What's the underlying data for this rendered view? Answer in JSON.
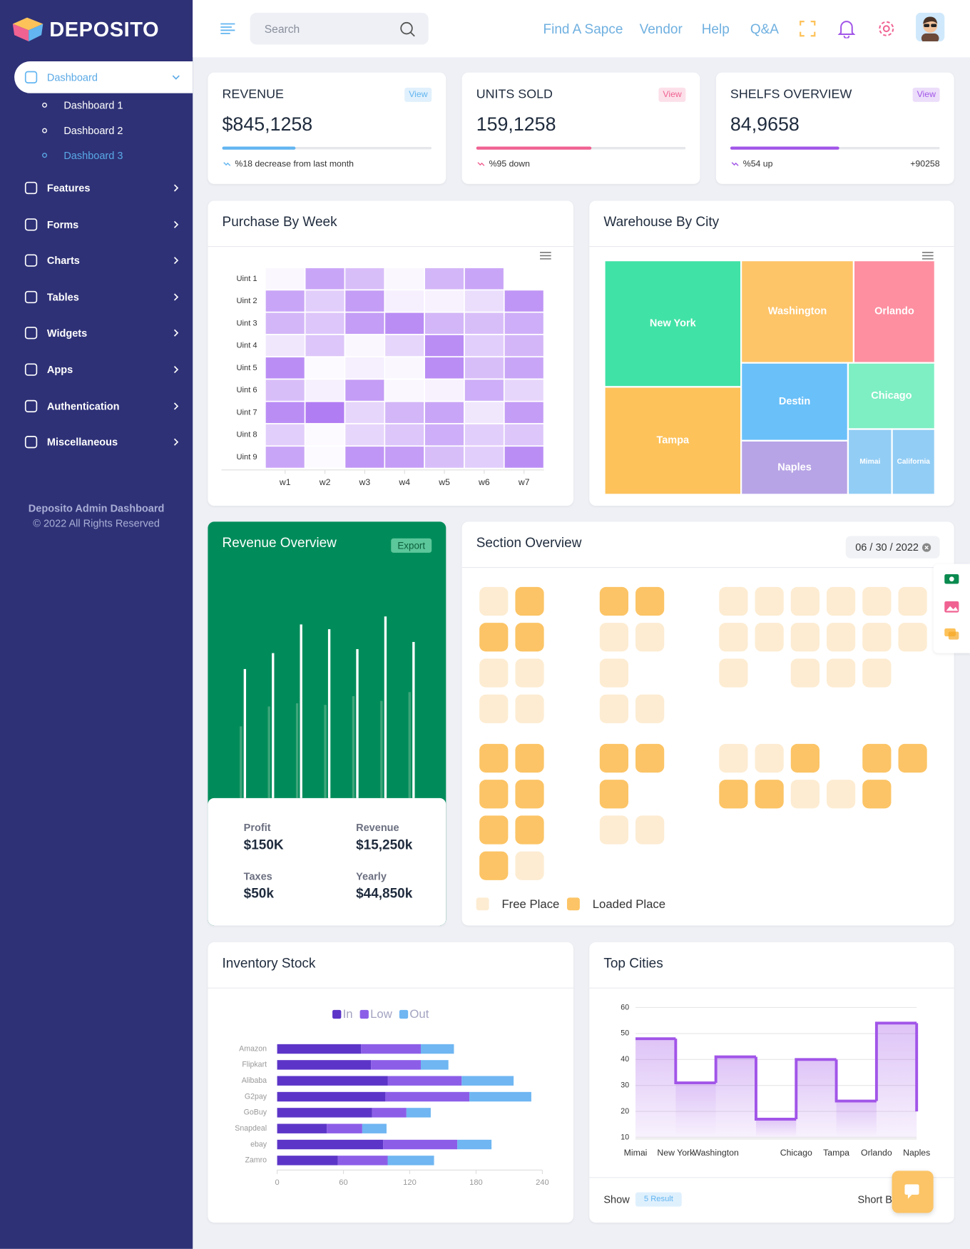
{
  "sidebar": {
    "brand": "DEPOSITO",
    "menu": [
      {
        "label": "Dashboard",
        "children": [
          "Dashboard 1",
          "Dashboard 2",
          "Dashboard 3"
        ]
      },
      {
        "label": "Features"
      },
      {
        "label": "Forms"
      },
      {
        "label": "Charts"
      },
      {
        "label": "Tables"
      },
      {
        "label": "Widgets"
      },
      {
        "label": "Apps"
      },
      {
        "label": "Authentication"
      },
      {
        "label": "Miscellaneous"
      }
    ],
    "footer": [
      "Deposito Admin Dashboard",
      "© 2022 All Rights Reserved"
    ]
  },
  "header": {
    "search": "Search",
    "links": [
      "Find A Sapce",
      "Vendor",
      "Help",
      "Q&A"
    ]
  },
  "stats": [
    {
      "title": "REVENUE",
      "button": "View",
      "value": "$845,1258",
      "progress": 35,
      "note": "%18 decrease from last month",
      "color": "#62b5f0"
    },
    {
      "title": "UNITS SOLD",
      "button": "View",
      "value": "159,1258",
      "progress": 55,
      "note": "%95 down",
      "color": "#f06292"
    },
    {
      "title": "SHELFS OVERVIEW",
      "button": "View",
      "value": "84,9658",
      "progress": 52,
      "note": "%54 up",
      "extra": "+90258",
      "color": "#a155e8"
    }
  ],
  "chart_data": [
    {
      "type": "heatmap",
      "title": "Purchase By Week",
      "x": [
        "w1",
        "w2",
        "w3",
        "w4",
        "w5",
        "w6",
        "w7"
      ],
      "color": "#9d5cf0",
      "range": [
        0,
        100
      ],
      "series": [
        {
          "name": "Uint 1",
          "values": [
            5,
            55,
            40,
            5,
            45,
            55,
            0
          ]
        },
        {
          "name": "Uint 2",
          "values": [
            55,
            30,
            60,
            10,
            8,
            20,
            65
          ]
        },
        {
          "name": "Uint 3",
          "values": [
            45,
            35,
            60,
            70,
            45,
            40,
            50
          ]
        },
        {
          "name": "Uint 4",
          "values": [
            15,
            35,
            5,
            25,
            70,
            30,
            45
          ]
        },
        {
          "name": "Uint 5",
          "values": [
            70,
            3,
            10,
            5,
            70,
            40,
            55
          ]
        },
        {
          "name": "Uint 6",
          "values": [
            40,
            10,
            60,
            5,
            8,
            50,
            25
          ]
        },
        {
          "name": "Uint 7",
          "values": [
            70,
            80,
            25,
            45,
            55,
            15,
            60
          ]
        },
        {
          "name": "Uint 8",
          "values": [
            30,
            3,
            25,
            35,
            50,
            30,
            35
          ]
        },
        {
          "name": "Uint 9",
          "values": [
            55,
            3,
            65,
            60,
            40,
            30,
            70
          ]
        }
      ]
    },
    {
      "type": "treemap",
      "title": "Warehouse By City",
      "categories": [
        "New York",
        "Tampa",
        "Washington",
        "Orlando",
        "Destin",
        "Naples",
        "Chicago",
        "Mimai",
        "California"
      ],
      "values": [
        27,
        23,
        18,
        13,
        13,
        9,
        9,
        4.5,
        4.4
      ],
      "colors": [
        "#41e2a6",
        "#fdc25a",
        "#fdc468",
        "#fd8fa0",
        "#6ac0f9",
        "#b7a4e6",
        "#7eeec3",
        "#92cdf5",
        "#92cdf5"
      ]
    },
    {
      "type": "bar",
      "title": "Revenue Overview",
      "ylim": [
        0,
        250
      ],
      "series": [
        {
          "color": "#3fa57a",
          "values": [
            90,
            115,
            119,
            117,
            128,
            122,
            133
          ]
        },
        {
          "color": "#ffffff",
          "values": [
            162,
            182,
            218,
            212,
            187,
            228,
            196
          ]
        }
      ]
    },
    {
      "type": "stacked_bar",
      "title": "Inventory Stock",
      "orientation": "horizontal",
      "categories": [
        "Amazon",
        "Flipkart",
        "Alibaba",
        "G2pay",
        "GoBuy",
        "Snapdeal",
        "ebay",
        "Zamro"
      ],
      "series": [
        {
          "name": "In",
          "color": "#5c35c8",
          "values": [
            76,
            85,
            100,
            98,
            86,
            45,
            96,
            55
          ]
        },
        {
          "name": "Low",
          "color": "#8c5ee8",
          "values": [
            54,
            45,
            67,
            76,
            31,
            32,
            67,
            45
          ]
        },
        {
          "name": "Out",
          "color": "#6fb6f2",
          "values": [
            30,
            25,
            47,
            56,
            22,
            22,
            31,
            42
          ]
        }
      ],
      "xlim": [
        0,
        240
      ],
      "xticks": [
        0,
        60,
        120,
        180,
        240
      ]
    },
    {
      "type": "line",
      "step": true,
      "title": "Top Cities",
      "categories": [
        "Mimai",
        "New York",
        "Washington",
        null,
        "Chicago",
        "Tampa",
        "Orlando",
        "Naples"
      ],
      "values": [
        48,
        31,
        41,
        17,
        40,
        24,
        54,
        20
      ],
      "color": "#a155e8",
      "ylim": [
        10,
        60
      ],
      "yticks": [
        10,
        20,
        30,
        40,
        50,
        60
      ],
      "grid": true
    }
  ],
  "revenue_summary": {
    "button": "Export",
    "items": [
      {
        "label": "Profit",
        "value": "$150K"
      },
      {
        "label": "Revenue",
        "value": "$15,250k"
      },
      {
        "label": "Taxes",
        "value": "$50k"
      },
      {
        "label": "Yearly",
        "value": "$44,850k"
      }
    ]
  },
  "section_overview": {
    "title": "Section Overview",
    "date": "06 / 30 / 2022",
    "legend": [
      "Free Place",
      "Loaded Place"
    ],
    "colors": [
      "#fdecd2",
      "#fcc466"
    ],
    "blocks": [
      [
        [
          0,
          1
        ],
        [
          1,
          1
        ],
        [
          0,
          0
        ],
        [
          0,
          0
        ]
      ],
      [
        [
          1,
          1
        ],
        [
          0,
          0
        ],
        [
          0,
          null
        ],
        [
          0,
          0
        ]
      ],
      [
        [
          0,
          0,
          0,
          0,
          0,
          0
        ],
        [
          0,
          0,
          0,
          0,
          0,
          0
        ],
        [
          0,
          null,
          0,
          0,
          0,
          null
        ]
      ],
      [
        [
          1,
          1
        ],
        [
          1,
          1
        ],
        [
          1,
          1
        ],
        [
          1,
          0
        ]
      ],
      [
        [
          1,
          1
        ],
        [
          1,
          null
        ],
        [
          0,
          0
        ]
      ],
      [
        [
          0,
          0,
          1,
          null,
          1,
          1
        ],
        [
          1,
          1,
          0,
          0,
          1,
          null
        ]
      ]
    ]
  },
  "top_cities_footer": {
    "show": "Show",
    "select": "5 Result",
    "sort": "Short By"
  }
}
